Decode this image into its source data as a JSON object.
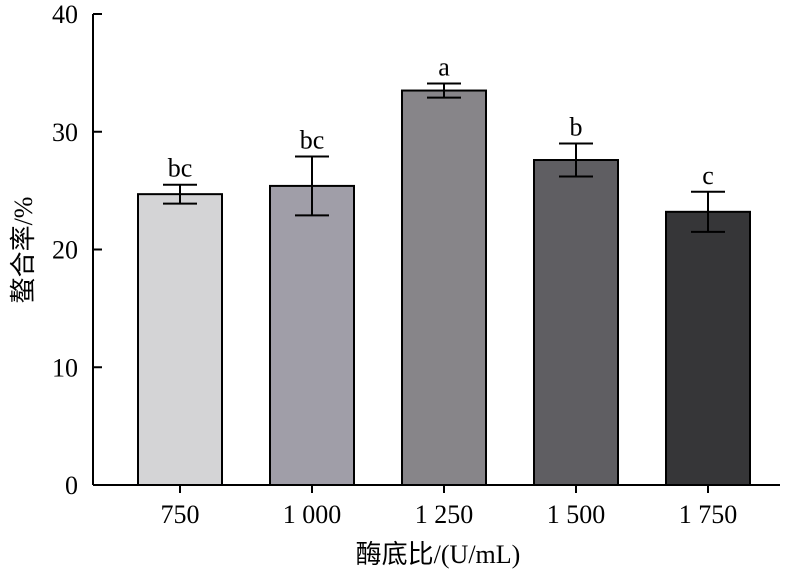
{
  "chart_data": {
    "type": "bar",
    "title": "",
    "xlabel": "酶底比/(U/mL)",
    "ylabel": "螯合率/%",
    "categories": [
      "750",
      "1 000",
      "1 250",
      "1 500",
      "1 750"
    ],
    "values": [
      24.7,
      25.4,
      33.5,
      27.6,
      23.2
    ],
    "errors": [
      0.8,
      2.5,
      0.6,
      1.4,
      1.7
    ],
    "significance": [
      "bc",
      "bc",
      "a",
      "b",
      "c"
    ],
    "bar_colors": [
      "#d4d4d6",
      "#a09ea8",
      "#878589",
      "#5f5e62",
      "#363638"
    ],
    "ylim": [
      0,
      40
    ],
    "yticks": [
      0,
      10,
      20,
      30,
      40
    ],
    "grid": false,
    "legend": "none"
  }
}
